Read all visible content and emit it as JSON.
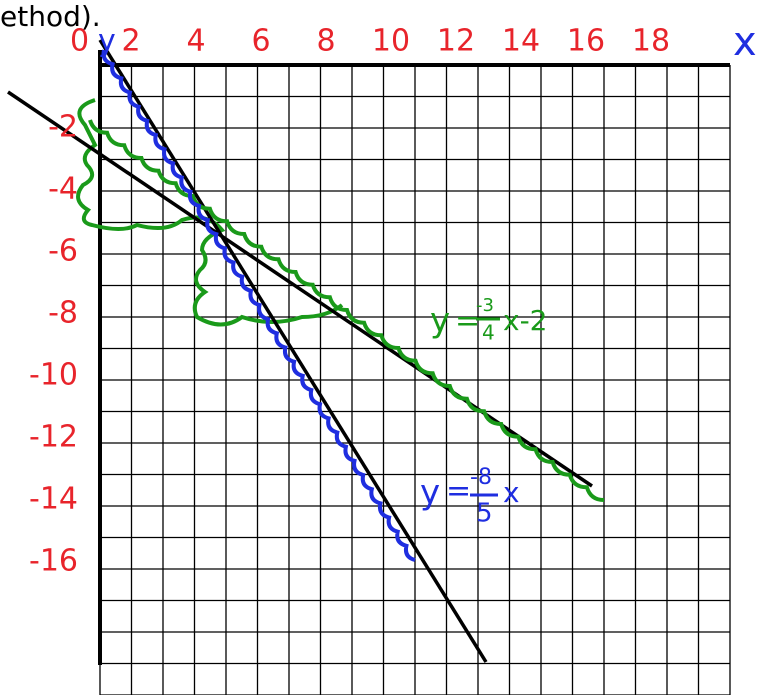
{
  "header": {
    "text": "ethod)."
  },
  "axes": {
    "origin": "0",
    "y_name": "y",
    "x_name": "x",
    "x_labels": [
      "2",
      "4",
      "6",
      "8",
      "10",
      "12",
      "14",
      "16",
      "18"
    ],
    "y_labels": [
      "-2",
      "-4",
      "-6",
      "-8",
      "-10",
      "-12",
      "-14",
      "-16"
    ]
  },
  "equations": [
    {
      "lhs": "y",
      "eq": "=",
      "numerator": "-3",
      "denominator": "4",
      "rest": "x-2"
    },
    {
      "lhs": "y",
      "eq": "=",
      "numerator": "-8",
      "denominator": "5",
      "rest": "x"
    }
  ]
}
